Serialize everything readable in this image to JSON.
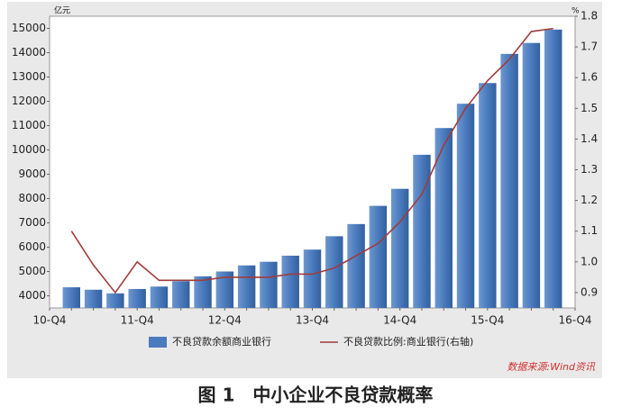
{
  "chart_data": {
    "type": "bar_line",
    "y_unit": "亿元",
    "y2_unit": "%",
    "caption": "图 1　中小企业不良贷款概率",
    "source": "数据来源:Wind资讯",
    "categories": [
      "10-Q4",
      null,
      null,
      null,
      "11-Q4",
      null,
      null,
      null,
      "12-Q4",
      null,
      null,
      null,
      "13-Q4",
      null,
      null,
      null,
      "14-Q4",
      null,
      null,
      null,
      "15-Q4",
      null,
      null,
      null,
      "16-Q4"
    ],
    "series": [
      {
        "name": "不良贷款余额商业银行",
        "type": "bar",
        "color": "#4a7bbd",
        "values": [
          null,
          4350,
          4250,
          4100,
          4280,
          4380,
          4600,
          4800,
          5000,
          5250,
          5400,
          5650,
          5900,
          6450,
          6950,
          7700,
          8400,
          9800,
          10900,
          11900,
          12750,
          13950,
          14400,
          14950,
          null
        ]
      },
      {
        "name": "不良贷款比例:商业银行(右轴)",
        "type": "line",
        "axis": "y2",
        "color": "#a03c3c",
        "values": [
          null,
          1.1,
          0.99,
          0.9,
          1.0,
          0.94,
          0.94,
          0.94,
          0.95,
          0.95,
          0.95,
          0.96,
          0.96,
          0.98,
          1.02,
          1.06,
          1.13,
          1.22,
          1.38,
          1.5,
          1.59,
          1.66,
          1.75,
          1.76,
          null
        ]
      }
    ],
    "ylim": [
      3500,
      15500
    ],
    "yticks": [
      4000,
      5000,
      6000,
      7000,
      8000,
      9000,
      10000,
      11000,
      12000,
      13000,
      14000,
      15000
    ],
    "y2lim": [
      0.85,
      1.8
    ],
    "y2ticks": [
      0.9,
      {
        "value": 1,
        "label": "1.0"
      },
      1.1,
      1.2,
      1.3,
      1.4,
      1.5,
      1.6,
      1.7,
      1.8
    ]
  }
}
